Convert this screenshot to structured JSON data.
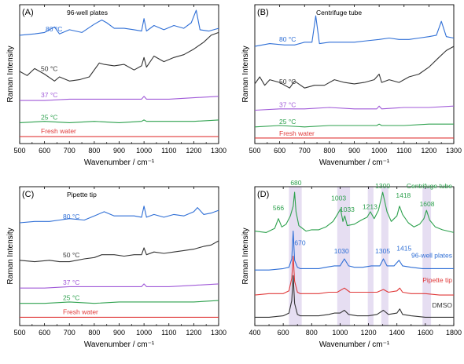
{
  "colors": {
    "blue": "#2f6fd6",
    "black": "#333333",
    "purple": "#a05ad8",
    "green": "#2ea14e",
    "red": "#e03a3a",
    "band": "#ddd3ee"
  },
  "chart_data": [
    {
      "type": "line",
      "letter": "(A)",
      "title": "96-well plates",
      "xlabel": "Wavenumber / cm⁻¹",
      "ylabel": "Raman Intensity",
      "xlim": [
        500,
        1300
      ],
      "xticks": [
        "500",
        "600",
        "700",
        "800",
        "900",
        "1000",
        "1100",
        "1200",
        "1300"
      ],
      "series": [
        {
          "name": "80 °C",
          "color": "blue",
          "offset": 0.78,
          "x": [
            500,
            560,
            600,
            640,
            660,
            700,
            750,
            800,
            830,
            850,
            880,
            920,
            960,
            990,
            1000,
            1010,
            1040,
            1080,
            1120,
            1160,
            1190,
            1210,
            1225,
            1260,
            1300
          ],
          "y": [
            0,
            0.01,
            0.02,
            0.06,
            0.01,
            0.04,
            0.02,
            0.08,
            0.11,
            0.09,
            0.05,
            0.05,
            0.04,
            0.03,
            0.12,
            0.03,
            0.07,
            0.04,
            0.07,
            0.05,
            0.09,
            0.18,
            0.04,
            0.03,
            0.05
          ]
        },
        {
          "name": "50 °C",
          "color": "black",
          "offset": 0.5,
          "x": [
            500,
            530,
            560,
            600,
            640,
            660,
            700,
            740,
            780,
            820,
            840,
            880,
            920,
            960,
            990,
            1000,
            1010,
            1040,
            1080,
            1120,
            1160,
            1200,
            1240,
            1270,
            1300
          ],
          "y": [
            0.02,
            -0.01,
            0.04,
            0,
            -0.05,
            -0.02,
            -0.05,
            -0.04,
            -0.02,
            0.08,
            0.07,
            0.06,
            0.07,
            0.03,
            0.06,
            0.12,
            0.05,
            0.13,
            0.09,
            0.12,
            0.14,
            0.18,
            0.23,
            0.28,
            0.3
          ]
        },
        {
          "name": "37 °C",
          "color": "purple",
          "offset": 0.31,
          "x": [
            500,
            600,
            700,
            800,
            900,
            990,
            1000,
            1010,
            1100,
            1200,
            1300
          ],
          "y": [
            0,
            0,
            0.01,
            0.01,
            0.01,
            0.01,
            0.03,
            0.01,
            0.01,
            0.02,
            0.03
          ]
        },
        {
          "name": "25 °C",
          "color": "green",
          "offset": 0.15,
          "x": [
            500,
            600,
            700,
            800,
            900,
            990,
            1000,
            1010,
            1100,
            1200,
            1300
          ],
          "y": [
            0,
            0.01,
            0,
            0.01,
            0,
            0.01,
            0.02,
            0.01,
            0.01,
            0.01,
            0.02
          ]
        },
        {
          "name": "Fresh water",
          "color": "red",
          "offset": 0.05,
          "x": [
            500,
            1300
          ],
          "y": [
            0,
            0
          ]
        }
      ]
    },
    {
      "type": "line",
      "letter": "(B)",
      "title": "Centrifuge tube",
      "xlabel": "Wavenumber / cm⁻¹",
      "ylabel": "Raman Intensity",
      "xlim": [
        500,
        1300
      ],
      "xticks": [
        "500",
        "600",
        "700",
        "800",
        "900",
        "1000",
        "1100",
        "1200",
        "1300"
      ],
      "series": [
        {
          "name": "80 °C",
          "color": "blue",
          "offset": 0.7,
          "x": [
            500,
            560,
            620,
            660,
            700,
            730,
            745,
            760,
            800,
            850,
            900,
            950,
            1000,
            1040,
            1080,
            1120,
            1160,
            1200,
            1230,
            1250,
            1270,
            1300
          ],
          "y": [
            0,
            0.02,
            0.01,
            0.01,
            0.03,
            0.03,
            0.22,
            0.02,
            0.03,
            0.03,
            0.03,
            0.04,
            0.05,
            0.06,
            0.05,
            0.05,
            0.06,
            0.07,
            0.08,
            0.18,
            0.07,
            0.06
          ]
        },
        {
          "name": "50 °C",
          "color": "black",
          "offset": 0.4,
          "x": [
            500,
            520,
            540,
            560,
            600,
            640,
            660,
            700,
            740,
            780,
            820,
            860,
            900,
            940,
            980,
            1000,
            1010,
            1040,
            1080,
            1120,
            1160,
            1200,
            1240,
            1270,
            1300
          ],
          "y": [
            0.03,
            0.08,
            0.02,
            0.06,
            0.04,
            0.0,
            0.05,
            0.0,
            0.02,
            0.02,
            0.06,
            0.04,
            0.03,
            0.04,
            0.06,
            0.1,
            0.04,
            0.06,
            0.04,
            0.08,
            0.1,
            0.15,
            0.22,
            0.27,
            0.3
          ]
        },
        {
          "name": "37 °C",
          "color": "purple",
          "offset": 0.24,
          "x": [
            500,
            600,
            700,
            800,
            900,
            990,
            1000,
            1010,
            1100,
            1200,
            1300
          ],
          "y": [
            0,
            0.01,
            0.01,
            0.02,
            0.01,
            0.01,
            0.03,
            0.01,
            0.02,
            0.02,
            0.03
          ]
        },
        {
          "name": "25 °C",
          "color": "green",
          "offset": 0.12,
          "x": [
            500,
            600,
            700,
            800,
            900,
            990,
            1000,
            1010,
            1100,
            1200,
            1300
          ],
          "y": [
            0,
            0.01,
            0,
            0.01,
            0.01,
            0.01,
            0.02,
            0.01,
            0.01,
            0.02,
            0.02
          ]
        },
        {
          "name": "Fresh water",
          "color": "red",
          "offset": 0.04,
          "x": [
            500,
            1300
          ],
          "y": [
            0,
            0
          ]
        }
      ]
    },
    {
      "type": "line",
      "letter": "(C)",
      "title": "Pipette tip",
      "xlabel": "Wavenumber / cm⁻¹",
      "ylabel": "Raman Intensity",
      "xlim": [
        500,
        1300
      ],
      "xticks": [
        "500",
        "600",
        "700",
        "800",
        "900",
        "1000",
        "1100",
        "1200",
        "1300"
      ],
      "series": [
        {
          "name": "80 °C",
          "color": "blue",
          "offset": 0.74,
          "x": [
            500,
            560,
            620,
            660,
            700,
            760,
            800,
            840,
            880,
            920,
            960,
            990,
            1000,
            1010,
            1040,
            1080,
            1120,
            1160,
            1200,
            1215,
            1240,
            1270,
            1300
          ],
          "y": [
            0,
            0.01,
            0.01,
            0.02,
            0.03,
            0.02,
            0.05,
            0.08,
            0.05,
            0.05,
            0.05,
            0.04,
            0.12,
            0.04,
            0.06,
            0.04,
            0.06,
            0.05,
            0.08,
            0.11,
            0.06,
            0.07,
            0.09
          ]
        },
        {
          "name": "50 °C",
          "color": "black",
          "offset": 0.47,
          "x": [
            500,
            560,
            620,
            660,
            700,
            760,
            800,
            830,
            880,
            920,
            960,
            990,
            1000,
            1010,
            1040,
            1080,
            1120,
            1160,
            1200,
            1240,
            1270,
            1300
          ],
          "y": [
            0,
            -0.01,
            0,
            -0.01,
            -0.01,
            0.01,
            0.02,
            0.04,
            0.04,
            0.03,
            0.04,
            0.04,
            0.09,
            0.04,
            0.06,
            0.05,
            0.06,
            0.07,
            0.08,
            0.1,
            0.11,
            0.14
          ]
        },
        {
          "name": "37 °C",
          "color": "purple",
          "offset": 0.27,
          "x": [
            500,
            600,
            700,
            800,
            900,
            990,
            1000,
            1010,
            1100,
            1200,
            1300
          ],
          "y": [
            0,
            0,
            0.01,
            0.01,
            0.01,
            0.01,
            0.03,
            0.01,
            0.01,
            0.02,
            0.03
          ]
        },
        {
          "name": "25 °C",
          "color": "green",
          "offset": 0.16,
          "x": [
            500,
            600,
            700,
            800,
            900,
            1000,
            1100,
            1200,
            1300
          ],
          "y": [
            0,
            0,
            0.01,
            0,
            0.01,
            0.01,
            0.01,
            0.01,
            0.02
          ]
        },
        {
          "name": "Fresh water",
          "color": "red",
          "offset": 0.06,
          "x": [
            500,
            1300
          ],
          "y": [
            0,
            0
          ]
        }
      ]
    },
    {
      "type": "line",
      "letter": "(D)",
      "title": "",
      "xlabel": "Wavenumber / cm⁻¹",
      "ylabel": "Raman Intensity",
      "xlim": [
        400,
        1800
      ],
      "xticks": [
        "400",
        "600",
        "800",
        "1000",
        "1200",
        "1400",
        "1600",
        "1800"
      ],
      "bands": [
        [
          640,
          730
        ],
        [
          980,
          1070
        ],
        [
          1195,
          1235
        ],
        [
          1290,
          1340
        ],
        [
          1580,
          1640
        ]
      ],
      "series": [
        {
          "name": "Centrifuge tube",
          "color": "green",
          "offset": 0.66,
          "x": [
            400,
            480,
            540,
            566,
            590,
            620,
            650,
            670,
            680,
            690,
            710,
            760,
            800,
            850,
            900,
            950,
            975,
            1003,
            1020,
            1033,
            1050,
            1100,
            1150,
            1190,
            1213,
            1240,
            1270,
            1300,
            1330,
            1360,
            1400,
            1418,
            1440,
            1480,
            1520,
            1560,
            1590,
            1608,
            1630,
            1670,
            1720,
            1760,
            1800
          ],
          "y": [
            0.02,
            0.01,
            0.04,
            0.11,
            0.05,
            0.07,
            0.13,
            0.2,
            0.3,
            0.16,
            0.06,
            0.02,
            0.03,
            0.03,
            0.05,
            0.09,
            0.13,
            0.18,
            0.09,
            0.13,
            0.06,
            0.07,
            0.1,
            0.12,
            0.16,
            0.11,
            0.17,
            0.3,
            0.16,
            0.09,
            0.13,
            0.2,
            0.14,
            0.08,
            0.05,
            0.07,
            0.11,
            0.17,
            0.1,
            0.05,
            0.03,
            0.02,
            0.01
          ]
        },
        {
          "name": "96-well plates",
          "color": "blue",
          "offset": 0.4,
          "x": [
            400,
            500,
            600,
            640,
            660,
            670,
            680,
            700,
            720,
            780,
            850,
            900,
            960,
            1000,
            1030,
            1060,
            1100,
            1160,
            1220,
            1280,
            1305,
            1330,
            1380,
            1415,
            1440,
            1500,
            1580,
            1650,
            1720,
            1800
          ],
          "y": [
            0,
            0,
            0.01,
            0.02,
            0.08,
            0.28,
            0.07,
            0.02,
            0.01,
            0.01,
            0.01,
            0.02,
            0.03,
            0.03,
            0.08,
            0.03,
            0.02,
            0.02,
            0.03,
            0.03,
            0.08,
            0.03,
            0.03,
            0.07,
            0.03,
            0.02,
            0.01,
            0.01,
            0.01,
            0.01
          ]
        },
        {
          "name": "Pipette tip",
          "color": "red",
          "offset": 0.22,
          "x": [
            400,
            500,
            600,
            640,
            660,
            670,
            680,
            700,
            720,
            780,
            850,
            920,
            980,
            1030,
            1070,
            1120,
            1200,
            1260,
            1305,
            1340,
            1400,
            1420,
            1440,
            1500,
            1600,
            1700,
            1800
          ],
          "y": [
            0,
            0.01,
            0.01,
            0.03,
            0.12,
            0.28,
            0.1,
            0.02,
            0.01,
            0.01,
            0.01,
            0.02,
            0.02,
            0.05,
            0.02,
            0.02,
            0.02,
            0.02,
            0.04,
            0.02,
            0.03,
            0.05,
            0.02,
            0.01,
            0.01,
            0.0,
            0.0
          ]
        },
        {
          "name": "DMSO",
          "color": "black",
          "offset": 0.06,
          "x": [
            400,
            500,
            600,
            640,
            660,
            670,
            680,
            700,
            720,
            780,
            850,
            920,
            960,
            1000,
            1030,
            1060,
            1120,
            1200,
            1260,
            1305,
            1340,
            1400,
            1420,
            1440,
            1500,
            1600,
            1700,
            1800
          ],
          "y": [
            0,
            0,
            0.01,
            0.03,
            0.12,
            0.3,
            0.1,
            0.02,
            0.01,
            0.01,
            0.01,
            0.02,
            0.03,
            0.03,
            0.05,
            0.02,
            0.01,
            0.01,
            0.02,
            0.05,
            0.02,
            0.03,
            0.06,
            0.02,
            0.01,
            0.0,
            0.0,
            0.0
          ]
        }
      ],
      "peak_labels": [
        {
          "text": "566",
          "x": 566,
          "level": 0.83,
          "color": "green"
        },
        {
          "text": "680",
          "x": 690,
          "level": 1.01,
          "color": "green"
        },
        {
          "text": "1003",
          "x": 990,
          "level": 0.9,
          "color": "green"
        },
        {
          "text": "1033",
          "x": 1050,
          "level": 0.82,
          "color": "green"
        },
        {
          "text": "1213",
          "x": 1210,
          "level": 0.84,
          "color": "green"
        },
        {
          "text": "1300",
          "x": 1300,
          "level": 0.99,
          "color": "green"
        },
        {
          "text": "1418",
          "x": 1445,
          "level": 0.92,
          "color": "green"
        },
        {
          "text": "1608",
          "x": 1612,
          "level": 0.86,
          "color": "green"
        },
        {
          "text": "670",
          "x": 718,
          "level": 0.58,
          "color": "blue"
        },
        {
          "text": "1030",
          "x": 1010,
          "level": 0.52,
          "color": "blue"
        },
        {
          "text": "1305",
          "x": 1300,
          "level": 0.52,
          "color": "blue"
        },
        {
          "text": "1415",
          "x": 1450,
          "level": 0.54,
          "color": "blue"
        }
      ]
    }
  ]
}
